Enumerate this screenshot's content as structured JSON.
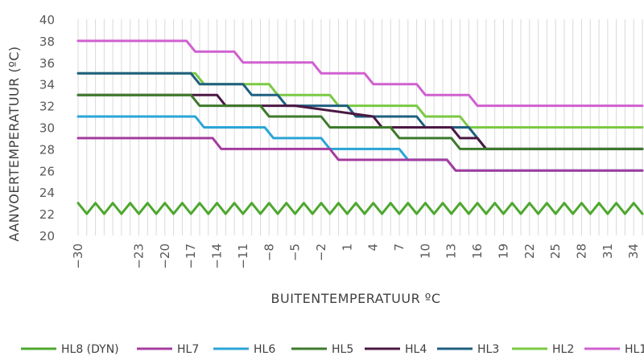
{
  "chart_data": {
    "type": "line",
    "xlabel": "BUITENTEMPERATUUR ºC",
    "ylabel": "AANVOERTEMPERATUUR (ºC)",
    "ylim": [
      20,
      40
    ],
    "yticks": [
      20,
      22,
      24,
      26,
      28,
      30,
      32,
      34,
      36,
      38,
      40
    ],
    "xlim": [
      -30,
      35
    ],
    "xticks": [
      "-30",
      "-23",
      "-20",
      "-17",
      "-14",
      "-11",
      "-8",
      "-5",
      "-2",
      "1",
      "4",
      "7",
      "10",
      "13",
      "16",
      "19",
      "22",
      "25",
      "28",
      "31",
      "34"
    ],
    "grid": "vertical",
    "legend": "bottom",
    "series": [
      {
        "name": "HL8 (DYN)",
        "color": "#4ea72e",
        "zigzag": {
          "base": 22,
          "amplitude": 1,
          "period": 2
        }
      },
      {
        "name": "HL7",
        "color": "#a43c9f",
        "points": [
          [
            -30,
            29
          ],
          [
            -14.5,
            29
          ],
          [
            -13.5,
            28
          ],
          [
            -1,
            28
          ],
          [
            0,
            27
          ],
          [
            7,
            27
          ],
          [
            8,
            27
          ],
          [
            12.5,
            27
          ],
          [
            13.5,
            26
          ],
          [
            35,
            26
          ]
        ]
      },
      {
        "name": "HL6",
        "color": "#2aa5d6",
        "points": [
          [
            -30,
            31
          ],
          [
            -16.5,
            31
          ],
          [
            -15.5,
            30
          ],
          [
            -8.5,
            30
          ],
          [
            -7.5,
            29
          ],
          [
            -2,
            29
          ],
          [
            -1,
            28
          ],
          [
            7,
            28
          ],
          [
            8,
            27
          ],
          [
            12.5,
            27
          ],
          [
            13.5,
            26
          ],
          [
            35,
            26
          ]
        ]
      },
      {
        "name": "HL5",
        "color": "#3d7a2c",
        "points": [
          [
            -30,
            33
          ],
          [
            -17,
            33
          ],
          [
            -16,
            32
          ],
          [
            -9,
            32
          ],
          [
            -8,
            31
          ],
          [
            -2,
            31
          ],
          [
            -1,
            30
          ],
          [
            6,
            30
          ],
          [
            7,
            29
          ],
          [
            13,
            29
          ],
          [
            14,
            28
          ],
          [
            35,
            28
          ]
        ]
      },
      {
        "name": "HL4",
        "color": "#4b1843",
        "points": [
          [
            -30,
            33
          ],
          [
            -14,
            33
          ],
          [
            -13,
            32
          ],
          [
            -6,
            32
          ],
          [
            -5,
            32
          ],
          [
            4,
            31
          ],
          [
            5,
            30
          ],
          [
            13,
            30
          ],
          [
            14,
            29
          ],
          [
            16,
            29
          ],
          [
            17,
            28
          ],
          [
            35,
            28
          ]
        ]
      },
      {
        "name": "HL3",
        "color": "#1f5f80",
        "points": [
          [
            -30,
            35
          ],
          [
            -17,
            35
          ],
          [
            -16,
            34
          ],
          [
            -11,
            34
          ],
          [
            -10,
            33
          ],
          [
            -7,
            33
          ],
          [
            -6,
            32
          ],
          [
            1,
            32
          ],
          [
            2,
            31
          ],
          [
            9,
            31
          ],
          [
            10,
            30
          ],
          [
            15,
            30
          ],
          [
            16,
            29
          ],
          [
            16,
            29
          ],
          [
            17,
            28
          ],
          [
            35,
            28
          ]
        ]
      },
      {
        "name": "HL2",
        "color": "#7ac943",
        "points": [
          [
            -30,
            35
          ],
          [
            -16.5,
            35
          ],
          [
            -15.5,
            34
          ],
          [
            -8,
            34
          ],
          [
            -7,
            33
          ],
          [
            -1,
            33
          ],
          [
            0,
            32
          ],
          [
            9,
            32
          ],
          [
            10,
            31
          ],
          [
            14,
            31
          ],
          [
            15,
            30
          ],
          [
            35,
            30
          ]
        ]
      },
      {
        "name": "HL1",
        "color": "#d060d0",
        "points": [
          [
            -30,
            38
          ],
          [
            -17.5,
            38
          ],
          [
            -16.5,
            37
          ],
          [
            -12,
            37
          ],
          [
            -11,
            36
          ],
          [
            -3,
            36
          ],
          [
            -2,
            35
          ],
          [
            3,
            35
          ],
          [
            4,
            34
          ],
          [
            9,
            34
          ],
          [
            10,
            33
          ],
          [
            15,
            33
          ],
          [
            16,
            32
          ],
          [
            35,
            32
          ]
        ]
      }
    ]
  }
}
